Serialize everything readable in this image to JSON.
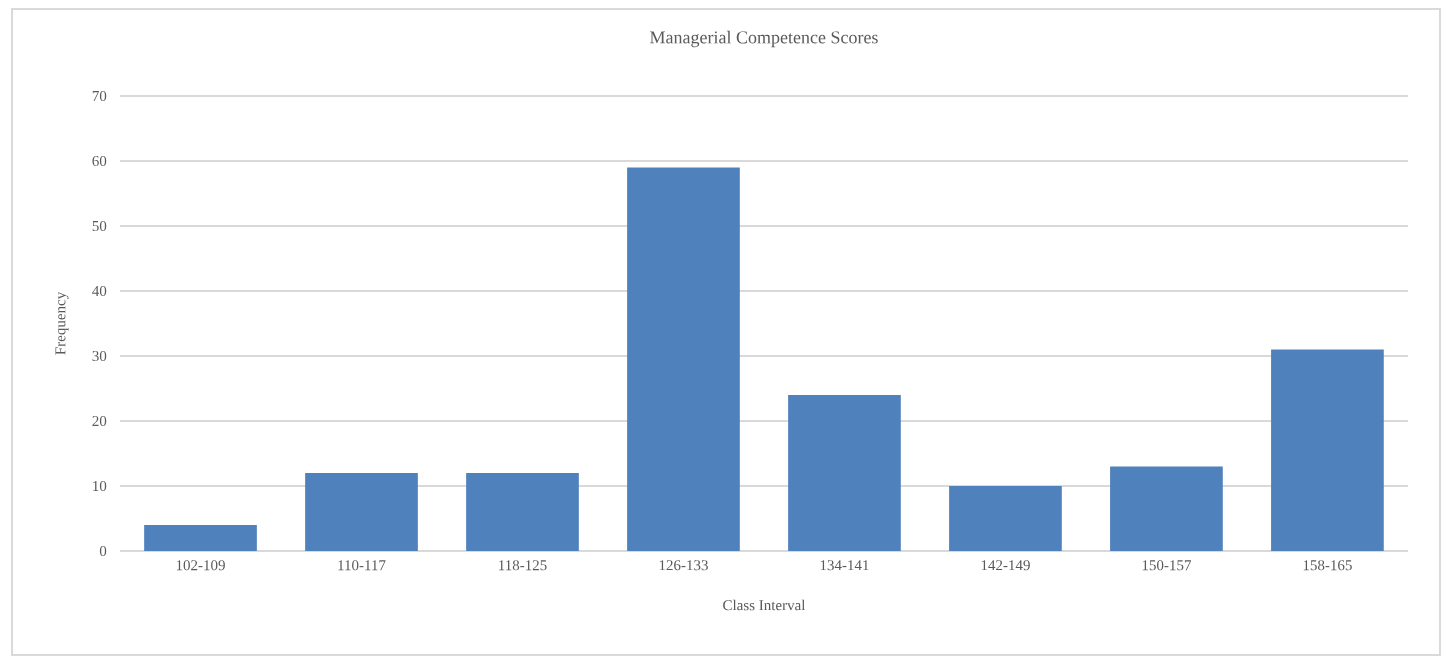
{
  "chart_data": {
    "type": "bar",
    "title": "Managerial Competence Scores",
    "xlabel": "Class Interval",
    "ylabel": "Frequency",
    "categories": [
      "102-109",
      "110-117",
      "118-125",
      "126-133",
      "134-141",
      "142-149",
      "150-157",
      "158-165"
    ],
    "values": [
      4,
      12,
      12,
      59,
      24,
      10,
      13,
      31
    ],
    "color": "#4f81bd",
    "ylim": [
      0,
      70
    ],
    "yticks": [
      0,
      10,
      20,
      30,
      40,
      50,
      60,
      70
    ],
    "grid": "y"
  }
}
